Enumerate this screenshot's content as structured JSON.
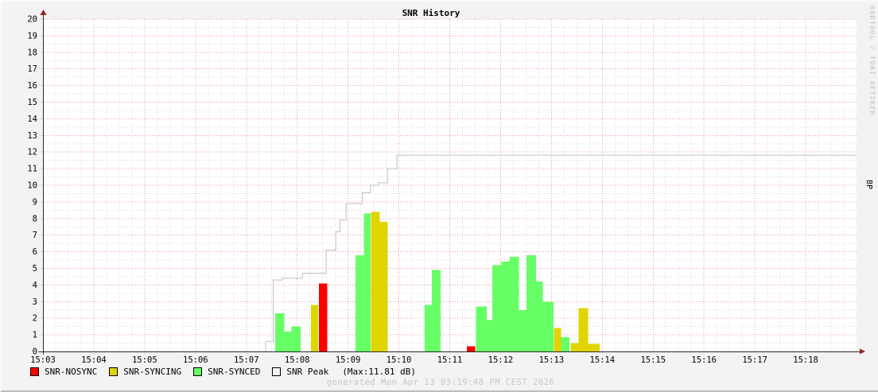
{
  "header": {
    "title": "SNR History"
  },
  "watermark": {
    "text": "RRDTOOL / TOBI OETIKER"
  },
  "right_axis": {
    "label": "BP"
  },
  "footer": {
    "generated": "generated Mon Apr 13 03:19:48 PM CEST 2026"
  },
  "legend": {
    "items": [
      {
        "label": "SNR-NOSYNC",
        "swatch": "#ff0000",
        "state": "nosync"
      },
      {
        "label": "SNR-SYNCING",
        "swatch": "#e0d500",
        "state": "syncing"
      },
      {
        "label": "SNR-SYNCED",
        "swatch": "#66ff66",
        "state": "synced"
      },
      {
        "label": "SNR Peak",
        "swatch": "#f2f2f2",
        "state": "peak"
      }
    ],
    "max_note": "(Max:11.81 dB)"
  },
  "chart_data": {
    "type": "bar",
    "title": "SNR History",
    "ylabel_right": "BP",
    "ylim": [
      0,
      20
    ],
    "y_major_step": 1,
    "y_minor_step": 0.5,
    "x_axis": {
      "tick_labels": [
        "15:03",
        "15:04",
        "15:05",
        "15:06",
        "15:07",
        "15:08",
        "15:09",
        "15:10",
        "15:11",
        "15:12",
        "15:13",
        "15:14",
        "15:15",
        "15:16",
        "15:17",
        "15:18"
      ],
      "domain_minutes": [
        0,
        16
      ],
      "minor_step_minutes": 0.25
    },
    "grid": {
      "major_color": "#f0a0a0",
      "minor_color": "#dcdcdc",
      "on": true
    },
    "series_colors": {
      "nosync": "#ff0000",
      "syncing": "#e0d500",
      "synced": "#66ff66",
      "peak": "#c9c9c9",
      "axis": "#2a2a2a",
      "arrow": "#a02020",
      "plot_bg": "#ffffff"
    },
    "bars": [
      {
        "t0": 4.57,
        "t1": 4.75,
        "value": 2.3,
        "state": "synced"
      },
      {
        "t0": 4.75,
        "t1": 4.89,
        "value": 1.2,
        "state": "synced"
      },
      {
        "t0": 4.89,
        "t1": 5.07,
        "value": 1.5,
        "state": "synced"
      },
      {
        "t0": 5.27,
        "t1": 5.41,
        "value": 2.8,
        "state": "syncing"
      },
      {
        "t0": 5.43,
        "t1": 5.59,
        "value": 4.1,
        "state": "nosync"
      },
      {
        "t0": 6.15,
        "t1": 6.31,
        "value": 5.8,
        "state": "synced"
      },
      {
        "t0": 6.31,
        "t1": 6.44,
        "value": 8.3,
        "state": "synced"
      },
      {
        "t0": 6.45,
        "t1": 6.62,
        "value": 8.4,
        "state": "syncing"
      },
      {
        "t0": 6.62,
        "t1": 6.78,
        "value": 7.8,
        "state": "syncing"
      },
      {
        "t0": 7.51,
        "t1": 7.65,
        "value": 2.8,
        "state": "synced"
      },
      {
        "t0": 7.65,
        "t1": 7.82,
        "value": 4.9,
        "state": "synced"
      },
      {
        "t0": 8.34,
        "t1": 8.5,
        "value": 0.3,
        "state": "nosync"
      },
      {
        "t0": 8.52,
        "t1": 8.73,
        "value": 2.7,
        "state": "synced"
      },
      {
        "t0": 8.73,
        "t1": 8.84,
        "value": 1.9,
        "state": "synced"
      },
      {
        "t0": 8.84,
        "t1": 9.02,
        "value": 5.2,
        "state": "synced"
      },
      {
        "t0": 9.02,
        "t1": 9.18,
        "value": 5.4,
        "state": "synced"
      },
      {
        "t0": 9.18,
        "t1": 9.36,
        "value": 5.7,
        "state": "synced"
      },
      {
        "t0": 9.36,
        "t1": 9.51,
        "value": 2.5,
        "state": "synced"
      },
      {
        "t0": 9.51,
        "t1": 9.7,
        "value": 5.8,
        "state": "synced"
      },
      {
        "t0": 9.7,
        "t1": 9.83,
        "value": 4.2,
        "state": "synced"
      },
      {
        "t0": 9.83,
        "t1": 10.04,
        "value": 3.0,
        "state": "synced"
      },
      {
        "t0": 10.05,
        "t1": 10.19,
        "value": 1.4,
        "state": "syncing"
      },
      {
        "t0": 10.19,
        "t1": 10.35,
        "value": 0.85,
        "state": "synced"
      },
      {
        "t0": 10.38,
        "t1": 10.53,
        "value": 0.5,
        "state": "syncing"
      },
      {
        "t0": 10.53,
        "t1": 10.72,
        "value": 2.6,
        "state": "syncing"
      },
      {
        "t0": 10.72,
        "t1": 10.95,
        "value": 0.45,
        "state": "syncing"
      }
    ],
    "peak_line": {
      "name": "SNR Peak",
      "max": 11.81,
      "points": [
        [
          4.38,
          0.0
        ],
        [
          4.38,
          0.6
        ],
        [
          4.53,
          0.6
        ],
        [
          4.53,
          4.3
        ],
        [
          4.71,
          4.3
        ],
        [
          4.71,
          4.4
        ],
        [
          5.1,
          4.4
        ],
        [
          5.1,
          4.7
        ],
        [
          5.57,
          4.7
        ],
        [
          5.57,
          6.1
        ],
        [
          5.76,
          6.1
        ],
        [
          5.76,
          7.2
        ],
        [
          5.84,
          7.2
        ],
        [
          5.84,
          7.9
        ],
        [
          5.96,
          7.9
        ],
        [
          5.96,
          8.9
        ],
        [
          6.28,
          8.9
        ],
        [
          6.28,
          9.55
        ],
        [
          6.44,
          9.55
        ],
        [
          6.44,
          10.0
        ],
        [
          6.6,
          10.0
        ],
        [
          6.6,
          10.15
        ],
        [
          6.78,
          10.15
        ],
        [
          6.78,
          11.0
        ],
        [
          6.96,
          11.0
        ],
        [
          6.96,
          11.81
        ],
        [
          16.0,
          11.81
        ]
      ]
    }
  }
}
